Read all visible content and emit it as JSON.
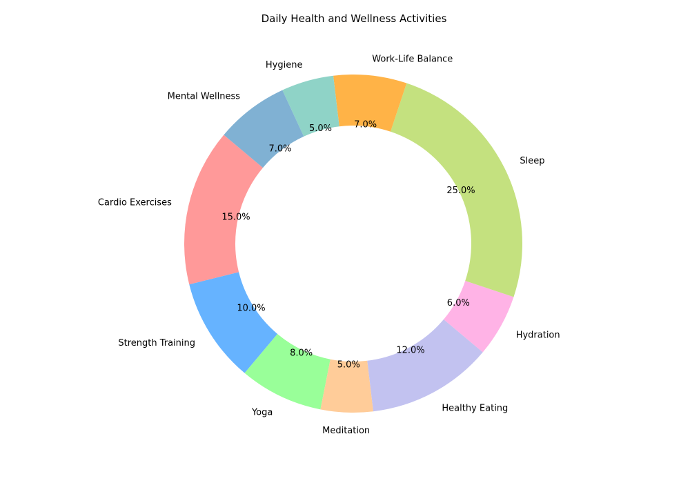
{
  "chart_data": {
    "type": "pie",
    "style": "donut",
    "title": "Daily Health and Wellness Activities",
    "categories": [
      "Cardio Exercises",
      "Strength Training",
      "Yoga",
      "Meditation",
      "Healthy Eating",
      "Hydration",
      "Sleep",
      "Work-Life Balance",
      "Hygiene",
      "Mental Wellness"
    ],
    "values": [
      15.0,
      10.0,
      8.0,
      5.0,
      12.0,
      6.0,
      25.0,
      7.0,
      5.0,
      7.0
    ],
    "value_labels": [
      "15.0%",
      "10.0%",
      "8.0%",
      "5.0%",
      "12.0%",
      "6.0%",
      "25.0%",
      "7.0%",
      "5.0%",
      "7.0%"
    ],
    "colors": [
      "#ff9999",
      "#66b3ff",
      "#99ff99",
      "#ffcc99",
      "#c2c2f0",
      "#ffb3e6",
      "#c4e17f",
      "#ffb347",
      "#8fd3c7",
      "#80b1d3"
    ],
    "start_angle_deg": 140,
    "direction": "counterclockwise",
    "legend": "none"
  }
}
